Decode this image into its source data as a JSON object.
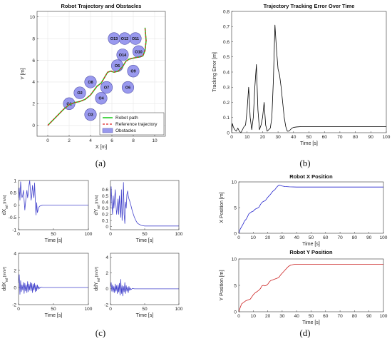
{
  "chart_data": [
    {
      "id": "trajectory",
      "type": "line",
      "title": "Robot Trajectory and Obstacles",
      "xlabel": "X [m]",
      "ylabel": "Y [m]",
      "xlim": [
        -1,
        11
      ],
      "ylim": [
        -1,
        10.5
      ],
      "xticks": [
        0,
        2,
        4,
        6,
        8,
        10
      ],
      "yticks": [
        0,
        2,
        4,
        6,
        8,
        10
      ],
      "grid": true,
      "legend": {
        "placement": "bottom-right",
        "entries": [
          "Robot path",
          "Reference trajectory",
          "Obstacles"
        ]
      },
      "series": [
        {
          "name": "Robot path",
          "color": "#22cc22",
          "style": "solid",
          "x": [
            0,
            0.5,
            1.0,
            1.5,
            2.0,
            2.5,
            3.0,
            3.5,
            4.0,
            4.3,
            4.6,
            5.0,
            5.3,
            5.6,
            5.9,
            6.2,
            6.6,
            7.0,
            7.3,
            7.6,
            8.0,
            8.5,
            8.9,
            9.1,
            9.2,
            9.1
          ],
          "y": [
            0,
            0.5,
            1.0,
            1.5,
            1.9,
            2.1,
            2.2,
            2.4,
            2.8,
            3.2,
            3.6,
            3.9,
            4.4,
            4.9,
            5.0,
            4.9,
            5.0,
            5.4,
            5.9,
            6.1,
            6.2,
            6.3,
            6.4,
            6.9,
            7.8,
            9.0
          ]
        },
        {
          "name": "Reference trajectory",
          "color": "#dd2222",
          "style": "dashed",
          "x": [
            0,
            0.5,
            1.0,
            1.5,
            2.0,
            2.5,
            3.0,
            3.5,
            4.0,
            4.3,
            4.6,
            5.0,
            5.3,
            5.6,
            5.9,
            6.2,
            6.6,
            7.0,
            7.3,
            7.6,
            8.0,
            8.5,
            8.9,
            9.1,
            9.2,
            9.1
          ],
          "y": [
            0,
            0.5,
            1.0,
            1.5,
            1.9,
            2.1,
            2.2,
            2.4,
            2.8,
            3.2,
            3.6,
            3.9,
            4.4,
            4.9,
            5.0,
            4.9,
            5.0,
            5.4,
            5.9,
            6.1,
            6.2,
            6.3,
            6.4,
            6.9,
            7.8,
            9.0
          ]
        }
      ],
      "obstacles": {
        "name": "Obstacles",
        "color": "#9999ee",
        "radius": 0.55,
        "items": [
          {
            "label": "O1",
            "x": 2.0,
            "y": 2.0
          },
          {
            "label": "O2",
            "x": 3.0,
            "y": 3.0
          },
          {
            "label": "O3",
            "x": 4.0,
            "y": 1.0
          },
          {
            "label": "O4",
            "x": 5.0,
            "y": 2.5
          },
          {
            "label": "O5",
            "x": 6.5,
            "y": 5.5
          },
          {
            "label": "O6",
            "x": 7.5,
            "y": 3.5
          },
          {
            "label": "O7",
            "x": 5.5,
            "y": 3.5
          },
          {
            "label": "O8",
            "x": 4.0,
            "y": 4.0
          },
          {
            "label": "O9",
            "x": 8.0,
            "y": 5.0
          },
          {
            "label": "O10",
            "x": 8.5,
            "y": 6.8
          },
          {
            "label": "O11",
            "x": 8.2,
            "y": 8.0
          },
          {
            "label": "O12",
            "x": 7.2,
            "y": 8.0
          },
          {
            "label": "O13",
            "x": 6.2,
            "y": 8.0
          },
          {
            "label": "O14",
            "x": 7.0,
            "y": 6.5
          }
        ]
      }
    },
    {
      "id": "tracking_error",
      "type": "line",
      "title": "Trajectory Tracking Error Over Time",
      "xlabel": "Time [s]",
      "ylabel": "Tracking Error [m]",
      "xlim": [
        0,
        100
      ],
      "ylim": [
        0,
        0.8
      ],
      "xticks": [
        0,
        10,
        20,
        30,
        40,
        50,
        60,
        70,
        80,
        90,
        100
      ],
      "yticks": [
        0,
        0.1,
        0.2,
        0.3,
        0.4,
        0.5,
        0.6,
        0.7,
        0.8
      ],
      "series": [
        {
          "color": "#000000",
          "x": [
            0,
            0.5,
            1,
            2,
            3,
            4,
            5,
            6,
            7,
            8,
            9,
            10,
            11,
            12,
            13,
            14,
            15,
            16,
            17,
            18,
            19,
            20,
            21,
            22,
            23,
            24,
            25,
            26,
            27,
            28,
            29,
            30,
            31,
            32,
            33,
            34,
            35,
            36,
            37,
            38,
            39,
            40,
            42,
            45,
            50,
            60,
            70,
            80,
            90,
            100
          ],
          "y": [
            0.01,
            0.06,
            0.04,
            0.02,
            0.01,
            0.03,
            0.01,
            0.0,
            0.02,
            0.04,
            0.05,
            0.15,
            0.3,
            0.1,
            0.02,
            0.1,
            0.3,
            0.45,
            0.15,
            0.02,
            0.05,
            0.1,
            0.2,
            0.05,
            0.01,
            0.02,
            0.03,
            0.1,
            0.35,
            0.71,
            0.55,
            0.42,
            0.38,
            0.3,
            0.2,
            0.1,
            0.04,
            0.01,
            0.01,
            0.02,
            0.03,
            0.035,
            0.038,
            0.04,
            0.04,
            0.04,
            0.04,
            0.04,
            0.04,
            0.04
          ]
        }
      ]
    },
    {
      "id": "dx_ref",
      "type": "line",
      "title": "",
      "xlabel": "Time [s]",
      "ylabel": "dX",
      "ylabel_sub": "ref",
      "ylabel_unit": " [m/s]",
      "xlim": [
        0,
        100
      ],
      "ylim": [
        -1,
        1
      ],
      "xticks": [
        0,
        50,
        100
      ],
      "yticks": [
        -1,
        -0.5,
        0,
        0.5,
        1
      ],
      "series": [
        {
          "color": "#4444cc",
          "x": [
            0,
            1,
            2,
            3,
            4,
            5,
            6,
            7,
            8,
            9,
            10,
            11,
            12,
            13,
            14,
            15,
            16,
            17,
            18,
            19,
            20,
            21,
            22,
            23,
            24,
            25,
            26,
            27,
            28,
            29,
            30,
            32,
            35,
            40,
            50,
            60,
            70,
            80,
            90,
            100
          ],
          "y": [
            0.3,
            0.7,
            0.2,
            0.95,
            0.5,
            0.3,
            0.4,
            0.6,
            0.2,
            -0.2,
            0.1,
            0.4,
            0.6,
            0.3,
            0.5,
            0.8,
            1.0,
            0.6,
            0.2,
            0.4,
            0.8,
            0.5,
            0.3,
            0.9,
            0.2,
            -0.4,
            0.1,
            -0.3,
            -0.2,
            -0.1,
            -0.05,
            -0.02,
            0,
            0,
            0,
            0,
            0,
            0,
            0,
            0
          ]
        }
      ]
    },
    {
      "id": "dy_ref",
      "type": "line",
      "title": "",
      "xlabel": "Time [s]",
      "ylabel": "dY",
      "ylabel_sub": "ref",
      "ylabel_unit": " [m/s]",
      "xlim": [
        0,
        100
      ],
      "ylim": [
        -0.05,
        0.75
      ],
      "xticks": [
        0,
        50,
        100
      ],
      "yticks": [
        0,
        0.1,
        0.2,
        0.3,
        0.4,
        0.5,
        0.6
      ],
      "series": [
        {
          "color": "#4444cc",
          "x": [
            0,
            1,
            2,
            3,
            4,
            5,
            6,
            7,
            8,
            9,
            10,
            11,
            12,
            13,
            14,
            15,
            16,
            17,
            18,
            19,
            20,
            21,
            22,
            23,
            24,
            25,
            26,
            27,
            28,
            29,
            30,
            32,
            35,
            38,
            40,
            45,
            50,
            60,
            70,
            80,
            90,
            100
          ],
          "y": [
            0.3,
            0.65,
            0.4,
            0.2,
            0.5,
            0.3,
            0.45,
            0.6,
            0.35,
            0.2,
            0.3,
            0.45,
            0.2,
            0.5,
            0.3,
            0.15,
            0.6,
            0.1,
            0.3,
            0.72,
            0.2,
            0.05,
            0.4,
            0.3,
            0.52,
            0.58,
            0.5,
            0.45,
            0.42,
            0.38,
            0.34,
            0.25,
            0.15,
            0.08,
            0.05,
            0.02,
            0.01,
            0.01,
            0.01,
            0.01,
            0.01,
            0.01
          ]
        }
      ]
    },
    {
      "id": "ddx_ref",
      "type": "line",
      "title": "",
      "xlabel": "Time [s]",
      "ylabel": "ddX",
      "ylabel_sub": "ref",
      "ylabel_unit": " [m/s²]",
      "xlim": [
        0,
        100
      ],
      "ylim": [
        -2,
        4
      ],
      "xticks": [
        0,
        50,
        100
      ],
      "yticks": [
        -2,
        0,
        2,
        4
      ],
      "series": [
        {
          "color": "#4444cc",
          "x": [
            0,
            1,
            2,
            3,
            4,
            5,
            6,
            7,
            8,
            9,
            10,
            11,
            12,
            13,
            14,
            15,
            16,
            17,
            18,
            19,
            20,
            21,
            22,
            23,
            24,
            25,
            26,
            27,
            28,
            29,
            30,
            32,
            35,
            40,
            50,
            60,
            70,
            80,
            90,
            100
          ],
          "y": [
            0.5,
            1.5,
            -0.8,
            0.8,
            -0.5,
            0.3,
            -0.3,
            0.6,
            -0.7,
            0.5,
            -0.4,
            0.3,
            -0.6,
            0.7,
            -0.5,
            0.4,
            -0.3,
            0.6,
            -0.4,
            0.5,
            -0.6,
            0.4,
            -0.3,
            0.5,
            -0.5,
            0.3,
            -0.4,
            0.3,
            -0.2,
            0.1,
            -0.1,
            0.05,
            0,
            0,
            0,
            0,
            0,
            0,
            0,
            0
          ]
        }
      ]
    },
    {
      "id": "ddy_ref",
      "type": "line",
      "title": "",
      "xlabel": "Time [s]",
      "ylabel": "ddY",
      "ylabel_sub": "ref",
      "ylabel_unit": " [m/s²]",
      "xlim": [
        0,
        100
      ],
      "ylim": [
        -2,
        4.5
      ],
      "xticks": [
        0,
        50,
        100
      ],
      "yticks": [
        -2,
        0,
        2,
        4
      ],
      "series": [
        {
          "color": "#4444cc",
          "x": [
            0,
            1,
            2,
            3,
            4,
            5,
            6,
            7,
            8,
            9,
            10,
            11,
            12,
            13,
            14,
            15,
            16,
            17,
            18,
            19,
            20,
            21,
            22,
            23,
            24,
            25,
            26,
            27,
            28,
            29,
            30,
            32,
            35,
            40,
            50,
            60,
            70,
            80,
            90,
            100
          ],
          "y": [
            0.2,
            0.8,
            -0.3,
            0.5,
            -0.4,
            0.3,
            -0.5,
            0.6,
            -0.3,
            0.4,
            -0.6,
            0.5,
            -0.4,
            0.7,
            -0.8,
            1.2,
            -0.6,
            0.4,
            -0.9,
            0.3,
            -0.4,
            0.8,
            -0.6,
            0.4,
            -0.3,
            0.2,
            -0.5,
            0.3,
            -0.2,
            0.1,
            -0.1,
            0.05,
            0,
            0,
            0,
            0,
            0,
            0,
            0,
            0
          ]
        }
      ]
    },
    {
      "id": "x_position",
      "type": "line",
      "title": "Robot X Position",
      "xlabel": "Time [s]",
      "ylabel": "X Position [m]",
      "xlim": [
        0,
        100
      ],
      "ylim": [
        0,
        10
      ],
      "xticks": [
        0,
        10,
        20,
        30,
        40,
        50,
        60,
        70,
        80,
        90,
        100
      ],
      "yticks": [
        0,
        5,
        10
      ],
      "series": [
        {
          "color": "#2222cc",
          "x": [
            0,
            1,
            2,
            3,
            4,
            5,
            6,
            7,
            8,
            9,
            10,
            11,
            12,
            13,
            14,
            15,
            16,
            17,
            18,
            19,
            20,
            21,
            22,
            23,
            24,
            25,
            26,
            27,
            28,
            29,
            30,
            32,
            35,
            40,
            50,
            60,
            70,
            80,
            90,
            100
          ],
          "y": [
            0,
            0.8,
            1.3,
            1.8,
            2.4,
            2.7,
            3.2,
            3.8,
            4.0,
            4.2,
            4.3,
            4.6,
            4.8,
            4.9,
            5.1,
            5.6,
            6.0,
            6.2,
            6.3,
            6.6,
            7.0,
            7.3,
            7.6,
            8.0,
            8.3,
            8.5,
            8.9,
            9.2,
            9.4,
            9.3,
            9.2,
            9.1,
            9.05,
            9.0,
            9.0,
            9.0,
            9.0,
            9.0,
            9.0,
            9.0
          ]
        }
      ]
    },
    {
      "id": "y_position",
      "type": "line",
      "title": "Robot Y Position",
      "xlabel": "Time [s]",
      "ylabel": "Y Position [m]",
      "xlim": [
        0,
        100
      ],
      "ylim": [
        0,
        10
      ],
      "xticks": [
        0,
        10,
        20,
        30,
        40,
        50,
        60,
        70,
        80,
        90,
        100
      ],
      "yticks": [
        0,
        5,
        10
      ],
      "series": [
        {
          "color": "#cc2222",
          "x": [
            0,
            1,
            2,
            3,
            4,
            5,
            6,
            7,
            8,
            9,
            10,
            11,
            12,
            13,
            14,
            15,
            16,
            17,
            18,
            19,
            20,
            21,
            22,
            23,
            24,
            25,
            26,
            27,
            28,
            29,
            30,
            31,
            32,
            33,
            34,
            35,
            36,
            38,
            40,
            45,
            50,
            60,
            70,
            80,
            90,
            100
          ],
          "y": [
            0,
            0.8,
            1.5,
            1.7,
            1.9,
            2.1,
            2.2,
            2.3,
            2.4,
            2.8,
            3.2,
            3.5,
            3.7,
            3.9,
            4.1,
            4.4,
            4.9,
            5.0,
            4.9,
            5.0,
            5.2,
            5.6,
            5.9,
            6.0,
            6.1,
            6.2,
            6.3,
            6.4,
            6.6,
            7.0,
            7.3,
            7.6,
            7.9,
            8.2,
            8.5,
            8.7,
            8.85,
            8.95,
            9.0,
            9.0,
            9.0,
            9.0,
            9.0,
            9.0,
            9.0,
            9.0
          ]
        }
      ]
    }
  ],
  "captions": {
    "a": "(a)",
    "b": "(b)",
    "c": "(c)",
    "d": "(d)"
  }
}
